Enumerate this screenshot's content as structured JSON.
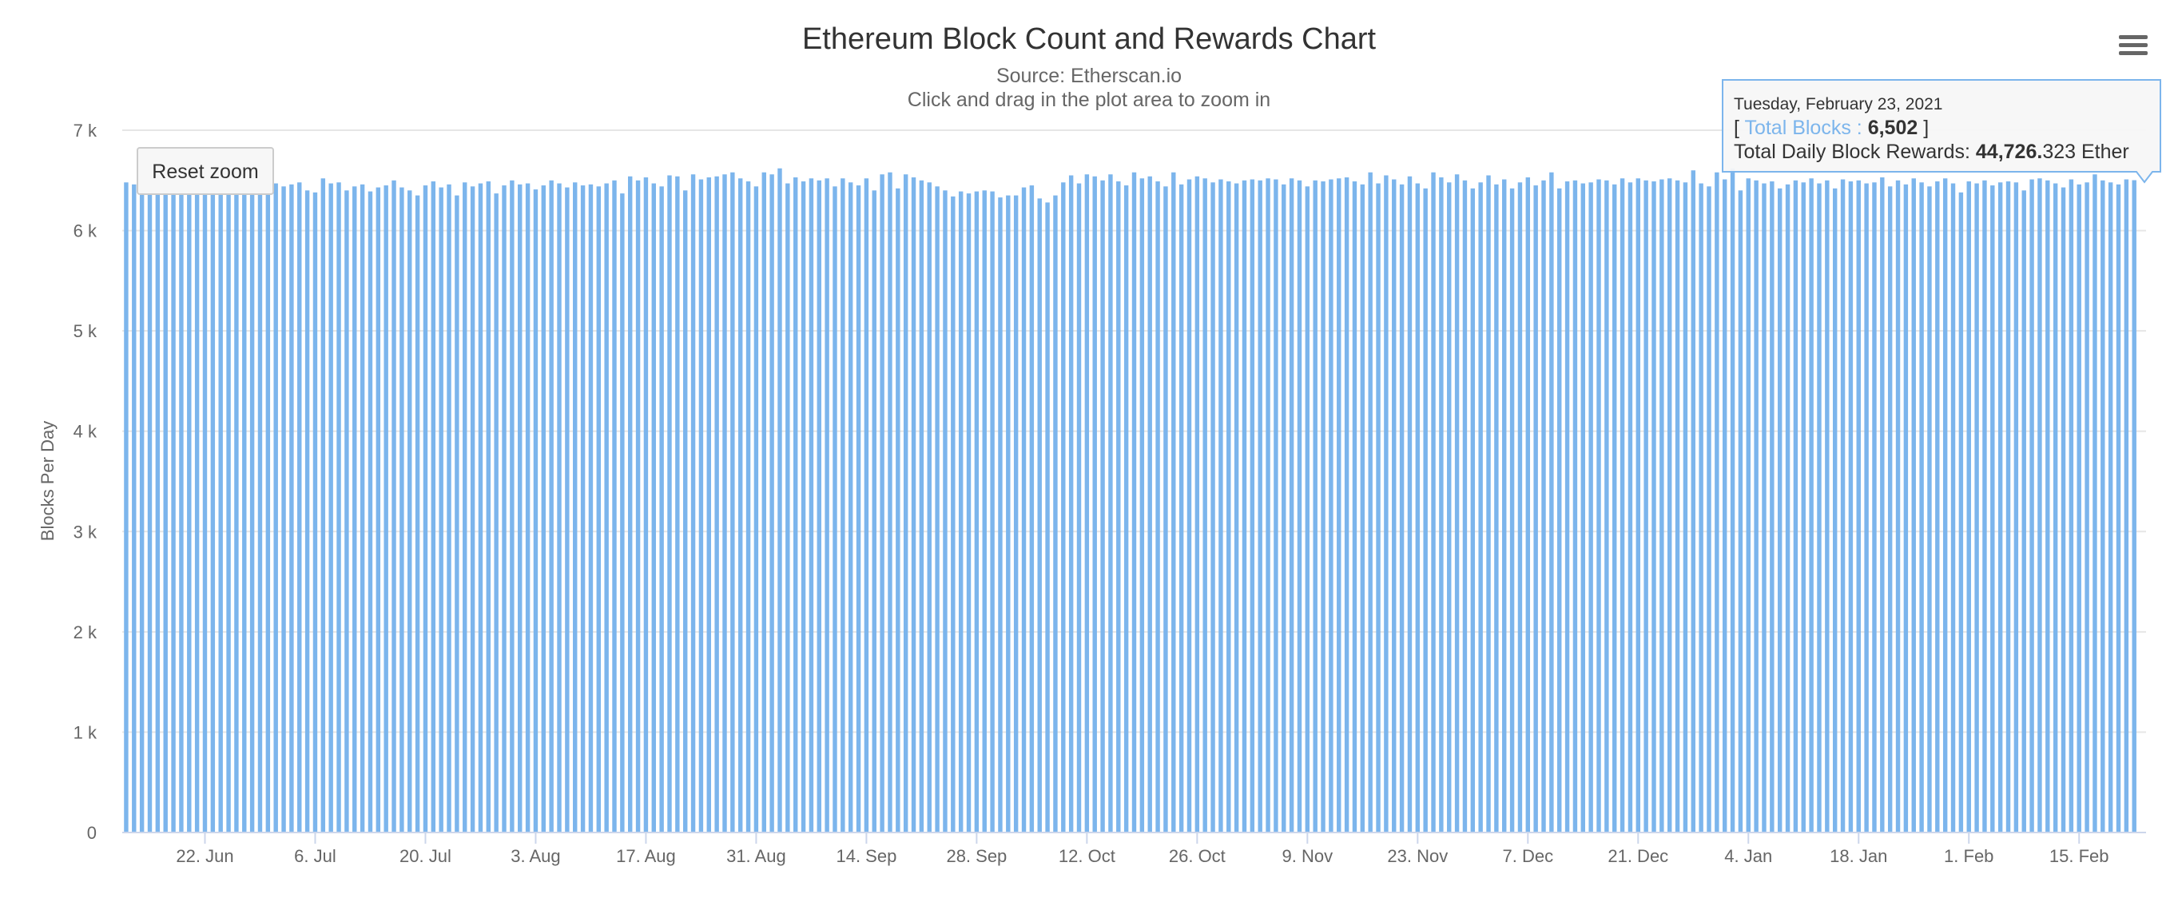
{
  "chart": {
    "title": "Ethereum Block Count and Rewards Chart",
    "subtitle_source": "Source: Etherscan.io",
    "subtitle_hint": "Click and drag in the plot area to zoom in",
    "reset_zoom_label": "Reset zoom",
    "menu_icon": "hamburger-menu-icon"
  },
  "tooltip": {
    "date": "Tuesday, February 23, 2021",
    "open_bracket": "[ ",
    "series_label": "Total Blocks",
    "separator": " : ",
    "blocks_value": "6,502",
    "close_bracket": " ]",
    "rewards_label": "Total Daily Block Rewards: ",
    "rewards_bold": "44,726.",
    "rewards_rest": "323 Ether"
  },
  "colors": {
    "bar": "#7cb5ec",
    "gridline": "#e6e6e6",
    "axis_line": "#ccd6eb",
    "tooltip_border": "#7cb5ec",
    "series_label": "#7cb5ec"
  },
  "chart_data": {
    "type": "bar",
    "ylabel": "Blocks Per Day",
    "ylim": [
      0,
      7000
    ],
    "y_ticks": [
      0,
      1000,
      2000,
      3000,
      4000,
      5000,
      6000,
      7000
    ],
    "y_tick_labels": [
      "0",
      "1 k",
      "2 k",
      "3 k",
      "4 k",
      "5 k",
      "6 k",
      "7 k"
    ],
    "x_start": "2020-06-12",
    "x_end": "2021-02-23",
    "x_ticks": [
      "2020-06-22",
      "2020-07-06",
      "2020-07-20",
      "2020-08-03",
      "2020-08-17",
      "2020-08-31",
      "2020-09-14",
      "2020-09-28",
      "2020-10-12",
      "2020-10-26",
      "2020-11-09",
      "2020-11-23",
      "2020-12-07",
      "2020-12-21",
      "2021-01-04",
      "2021-01-18",
      "2021-02-01",
      "2021-02-15"
    ],
    "x_tick_labels": [
      "22. Jun",
      "6. Jul",
      "20. Jul",
      "3. Aug",
      "17. Aug",
      "31. Aug",
      "14. Sep",
      "28. Sep",
      "12. Oct",
      "26. Oct",
      "9. Nov",
      "23. Nov",
      "7. Dec",
      "21. Dec",
      "4. Jan",
      "18. Jan",
      "1. Feb",
      "15. Feb"
    ],
    "series": [
      {
        "values": [
          6480,
          6460,
          6450,
          6470,
          6430,
          6460,
          6440,
          6470,
          6450,
          6430,
          6460,
          6420,
          6440,
          6450,
          6400,
          6430,
          6460,
          6410,
          6450,
          6470,
          6440,
          6460,
          6480,
          6400,
          6380,
          6520,
          6470,
          6480,
          6400,
          6440,
          6460,
          6390,
          6430,
          6450,
          6500,
          6430,
          6400,
          6350,
          6450,
          6490,
          6430,
          6460,
          6350,
          6480,
          6440,
          6470,
          6490,
          6370,
          6450,
          6500,
          6460,
          6470,
          6410,
          6450,
          6500,
          6470,
          6430,
          6480,
          6450,
          6460,
          6440,
          6470,
          6500,
          6370,
          6540,
          6500,
          6530,
          6470,
          6440,
          6550,
          6540,
          6400,
          6560,
          6510,
          6530,
          6540,
          6560,
          6580,
          6520,
          6490,
          6440,
          6580,
          6560,
          6620,
          6470,
          6530,
          6490,
          6520,
          6500,
          6520,
          6440,
          6520,
          6480,
          6450,
          6520,
          6400,
          6560,
          6580,
          6420,
          6560,
          6530,
          6500,
          6480,
          6440,
          6400,
          6340,
          6390,
          6370,
          6390,
          6400,
          6390,
          6330,
          6350,
          6350,
          6430,
          6450,
          6320,
          6280,
          6350,
          6480,
          6550,
          6470,
          6560,
          6540,
          6500,
          6560,
          6490,
          6450,
          6580,
          6520,
          6540,
          6490,
          6440,
          6580,
          6460,
          6510,
          6540,
          6520,
          6480,
          6510,
          6490,
          6470,
          6500,
          6510,
          6500,
          6520,
          6510,
          6460,
          6520,
          6500,
          6440,
          6500,
          6490,
          6510,
          6520,
          6530,
          6490,
          6460,
          6580,
          6470,
          6550,
          6510,
          6460,
          6540,
          6470,
          6420,
          6580,
          6530,
          6480,
          6560,
          6500,
          6420,
          6480,
          6550,
          6460,
          6510,
          6420,
          6480,
          6530,
          6450,
          6500,
          6580,
          6420,
          6490,
          6500,
          6470,
          6480,
          6510,
          6500,
          6460,
          6520,
          6480,
          6520,
          6500,
          6490,
          6510,
          6520,
          6500,
          6480,
          6600,
          6470,
          6440,
          6580,
          6510,
          6620,
          6400,
          6520,
          6500,
          6470,
          6490,
          6420,
          6460,
          6500,
          6480,
          6520,
          6470,
          6500,
          6420,
          6510,
          6490,
          6500,
          6470,
          6480,
          6530,
          6440,
          6500,
          6460,
          6520,
          6480,
          6440,
          6490,
          6520,
          6470,
          6380,
          6490,
          6470,
          6500,
          6450,
          6480,
          6490,
          6480,
          6400,
          6510,
          6520,
          6500,
          6470,
          6430,
          6510,
          6460,
          6480,
          6560,
          6500,
          6480,
          6460,
          6510,
          6502
        ]
      }
    ],
    "grid": true,
    "legend": "none"
  }
}
